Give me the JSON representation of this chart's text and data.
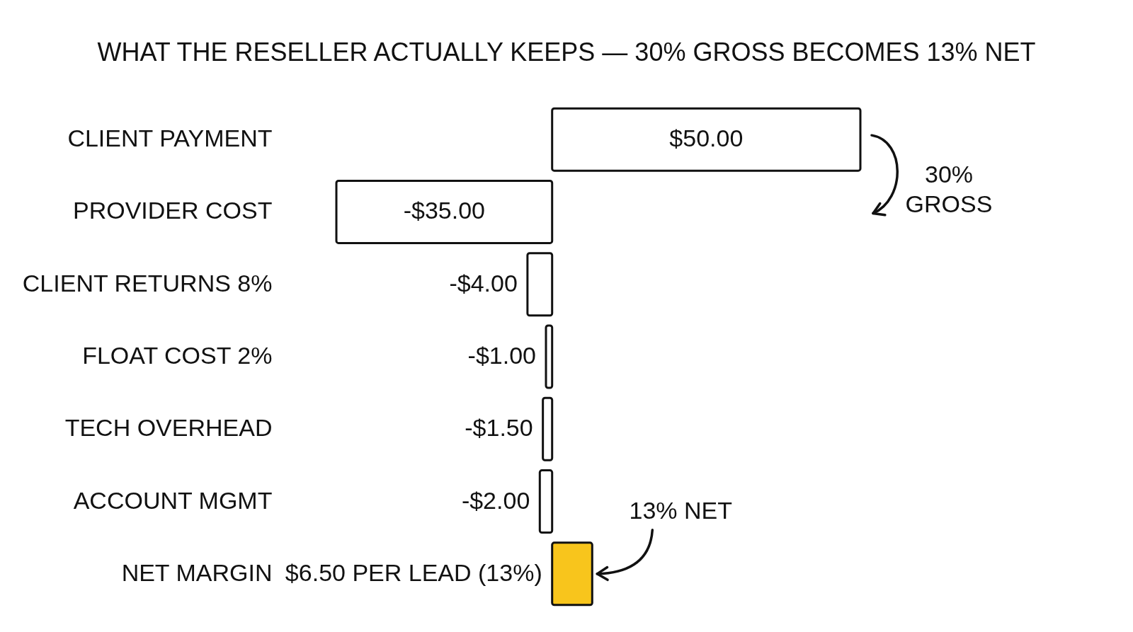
{
  "chart_data": {
    "type": "bar",
    "orientation": "horizontal",
    "title": "WHAT THE RESELLER ACTUALLY KEEPS — 30% GROSS BECOMES 13% NET",
    "categories": [
      "CLIENT PAYMENT",
      "PROVIDER COST",
      "CLIENT RETURNS 8%",
      "FLOAT COST 2%",
      "TECH OVERHEAD",
      "ACCOUNT MGMT",
      "NET MARGIN"
    ],
    "values": [
      50,
      -35,
      -4,
      -1,
      -1.5,
      -2,
      6.5
    ],
    "value_labels": [
      "$50.00",
      "-$35.00",
      "-$4.00",
      "-$1.00",
      "-$1.50",
      "-$2.00",
      "$6.50 PER LEAD (13%)"
    ],
    "colors": [
      "#ffffff",
      "#ffffff",
      "#ffffff",
      "#ffffff",
      "#ffffff",
      "#ffffff",
      "#f8c51c"
    ],
    "tick_labels": "y",
    "annotations": [
      "30% GROSS",
      "13% NET"
    ]
  }
}
